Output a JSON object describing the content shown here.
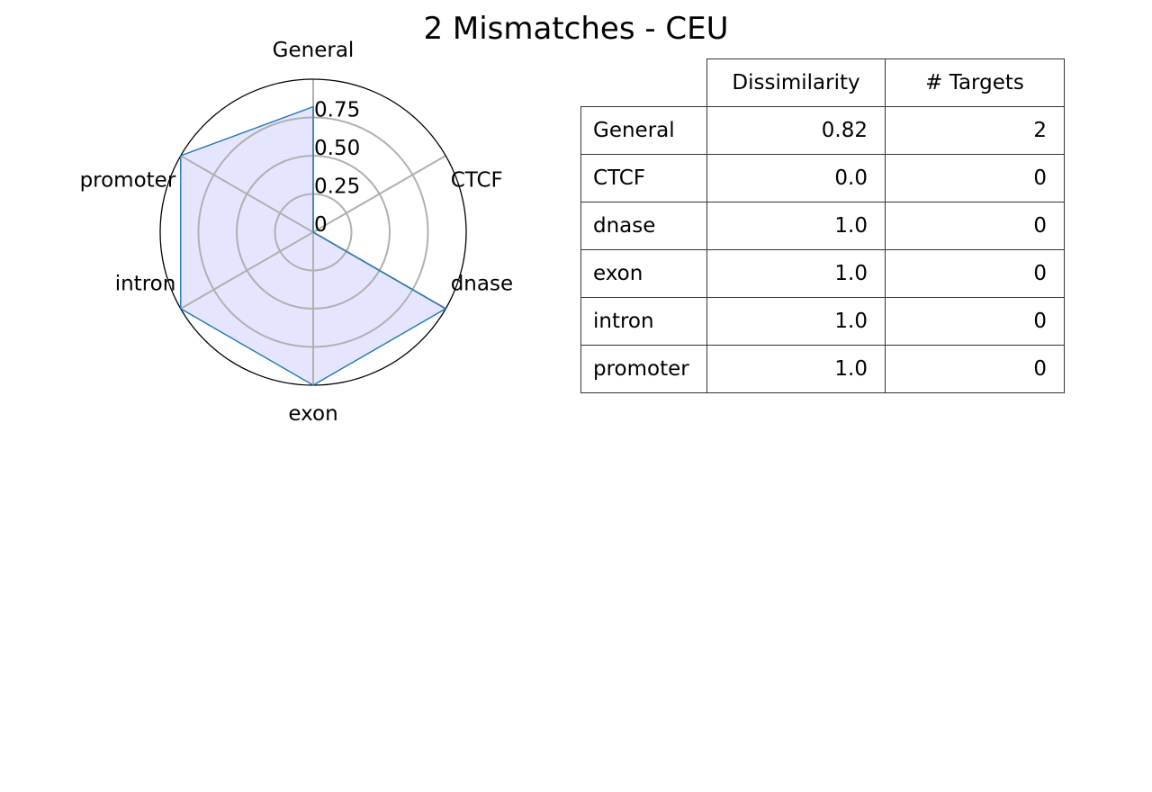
{
  "chart_data": {
    "type": "radar",
    "title": "2 Mismatches - CEU",
    "categories": [
      "General",
      "CTCF",
      "dnase",
      "exon",
      "intron",
      "promoter"
    ],
    "values": [
      0.82,
      0.0,
      1.0,
      1.0,
      1.0,
      1.0
    ],
    "rlim": [
      0,
      1
    ],
    "radial_ticks": [
      0,
      0.25,
      0.5,
      0.75
    ],
    "radial_tick_labels": [
      "0",
      "0.25",
      "0.50",
      "0.75"
    ],
    "series_name": "Dissimilarity",
    "colors": {
      "line": "#1f77b4",
      "fill": "#e5e5ff",
      "grid": "#b0b0b0",
      "frame": "#000000"
    },
    "table": {
      "columns": [
        "Dissimilarity",
        "# Targets"
      ],
      "rows": [
        {
          "label": "General",
          "dissimilarity": "0.82",
          "targets": "2"
        },
        {
          "label": "CTCF",
          "dissimilarity": "0.0",
          "targets": "0"
        },
        {
          "label": "dnase",
          "dissimilarity": "1.0",
          "targets": "0"
        },
        {
          "label": "exon",
          "dissimilarity": "1.0",
          "targets": "0"
        },
        {
          "label": "intron",
          "dissimilarity": "1.0",
          "targets": "0"
        },
        {
          "label": "promoter",
          "dissimilarity": "1.0",
          "targets": "0"
        }
      ]
    }
  }
}
